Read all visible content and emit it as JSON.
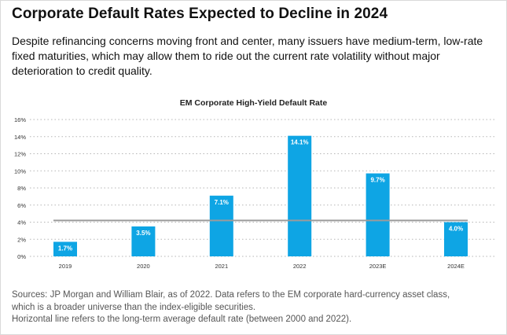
{
  "header": {
    "title": "Corporate Default Rates Expected to Decline in 2024",
    "subtitle": "Despite refinancing concerns moving front and center, many issuers have medium-term, low-rate fixed maturities, which may allow them to ride out the current rate volatility without major deterioration to credit quality."
  },
  "chart_data": {
    "type": "bar",
    "title": "EM Corporate High-Yield Default Rate",
    "categories": [
      "2019",
      "2020",
      "2021",
      "2022",
      "2023E",
      "2024E"
    ],
    "values": [
      1.7,
      3.5,
      7.1,
      14.1,
      9.7,
      4.0
    ],
    "data_labels": [
      "1.7%",
      "3.5%",
      "7.1%",
      "14.1%",
      "9.7%",
      "4.0%"
    ],
    "ylim": [
      0,
      16
    ],
    "yticks": [
      "0%",
      "2%",
      "4%",
      "6%",
      "8%",
      "10%",
      "12%",
      "14%",
      "16%"
    ],
    "ytick_values": [
      0,
      2,
      4,
      6,
      8,
      10,
      12,
      14,
      16
    ],
    "xlabel": "",
    "ylabel": "",
    "reference_line": 4.2,
    "grid": "dotted horizontal",
    "colors": {
      "bar": "#0ea5e4",
      "reference_line": "#9b9b9b",
      "grid": "#b5b5b5",
      "label_text": "#ffffff"
    }
  },
  "footer": {
    "sources_line1": "Sources: JP Morgan and William Blair, as of 2022. Data refers to the EM corporate hard-currency asset class,",
    "sources_line2": "which is a broader universe than the index-eligible securities.",
    "note": "Horizontal line refers to the long-term average default rate (between 2000 and 2022)."
  }
}
